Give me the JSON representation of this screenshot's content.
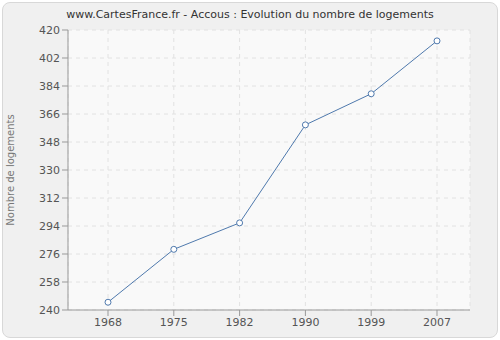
{
  "chart_data": {
    "type": "line",
    "title": "www.CartesFrance.fr - Accous : Evolution du nombre de logements",
    "y_label": "Nombre de logements",
    "categories": [
      "1968",
      "1975",
      "1982",
      "1990",
      "1999",
      "2007"
    ],
    "values": [
      245,
      279,
      296,
      359,
      379,
      413
    ],
    "color": "#4f79ad",
    "ylim": [
      240,
      420
    ],
    "yticks": [
      240,
      258,
      276,
      294,
      312,
      330,
      348,
      366,
      384,
      402,
      420
    ],
    "grid": true,
    "marker": "circle"
  }
}
